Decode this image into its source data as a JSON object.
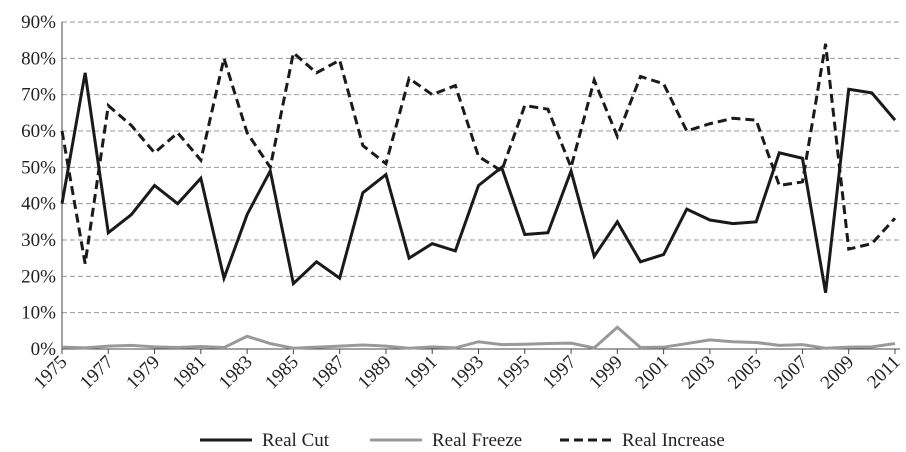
{
  "chart_data": {
    "type": "line",
    "x": [
      1975,
      1976,
      1977,
      1978,
      1979,
      1980,
      1981,
      1982,
      1983,
      1984,
      1985,
      1986,
      1987,
      1988,
      1989,
      1990,
      1991,
      1992,
      1993,
      1994,
      1995,
      1996,
      1997,
      1998,
      1999,
      2000,
      2001,
      2002,
      2003,
      2004,
      2005,
      2006,
      2007,
      2008,
      2009,
      2010,
      2011
    ],
    "series": [
      {
        "name": "Real Cut",
        "color": "#1a1a1a",
        "dash": false,
        "values": [
          40,
          76,
          32,
          37,
          45,
          40,
          47,
          19.5,
          37,
          49,
          18,
          24,
          19.5,
          43,
          48,
          25,
          29,
          27,
          45,
          50,
          31.5,
          32,
          49,
          25.5,
          35,
          24,
          26,
          38.5,
          35.5,
          34.5,
          35,
          54,
          52.5,
          15.5,
          71.5,
          70.5,
          63
        ]
      },
      {
        "name": "Real Freeze",
        "color": "#999999",
        "dash": false,
        "values": [
          0.5,
          0.3,
          0.8,
          1,
          0.6,
          0.4,
          0.7,
          0.4,
          3.5,
          1.5,
          0.2,
          0.5,
          0.8,
          1.1,
          0.8,
          0.2,
          0.6,
          0.3,
          2,
          1.2,
          1.3,
          1.5,
          1.6,
          0.3,
          6,
          0.4,
          0.5,
          1.5,
          2.5,
          2,
          1.8,
          1,
          1.2,
          0.2,
          0.5,
          0.6,
          1.5
        ]
      },
      {
        "name": "Real Increase",
        "color": "#1a1a1a",
        "dash": true,
        "values": [
          60,
          23.5,
          67,
          61.5,
          54,
          59.5,
          52,
          80,
          59.5,
          50,
          81.5,
          76,
          79.5,
          56,
          51,
          74.5,
          70,
          72.5,
          53,
          49,
          67,
          66,
          50,
          74,
          58.5,
          75,
          73,
          60,
          62,
          63.5,
          63,
          45,
          46,
          84,
          27.5,
          29,
          36
        ]
      }
    ],
    "xlim": [
      1975,
      2011
    ],
    "xticks": [
      1975,
      1977,
      1979,
      1981,
      1983,
      1985,
      1987,
      1989,
      1991,
      1993,
      1995,
      1997,
      1999,
      2001,
      2003,
      2005,
      2007,
      2009,
      2011
    ],
    "ylim": [
      0,
      90
    ],
    "yticks": [
      {
        "value": 0,
        "label": "0%"
      },
      {
        "value": 10,
        "label": "10%"
      },
      {
        "value": 20,
        "label": "20%"
      },
      {
        "value": 30,
        "label": "30%"
      },
      {
        "value": 40,
        "label": "40%"
      },
      {
        "value": 50,
        "label": "50%"
      },
      {
        "value": 60,
        "label": "60%"
      },
      {
        "value": 70,
        "label": "70%"
      },
      {
        "value": 80,
        "label": "80%"
      },
      {
        "value": 90,
        "label": "90%"
      }
    ],
    "grid": true,
    "legend": "bottom"
  }
}
